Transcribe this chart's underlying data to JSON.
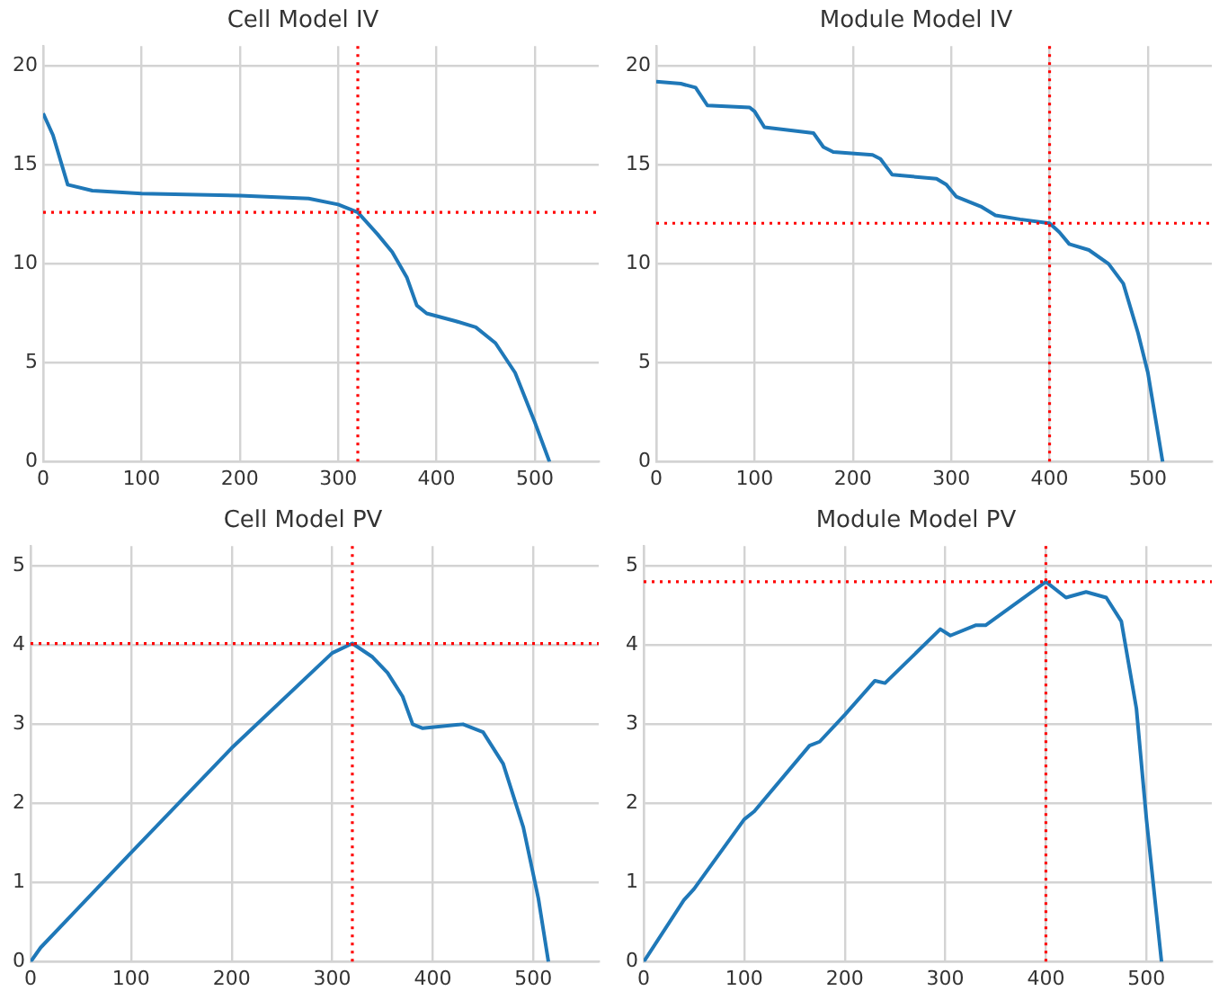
{
  "chart_data": [
    {
      "type": "line",
      "title": "Cell Model IV",
      "color": "#1f78b8",
      "grid": true,
      "line_style": "solid",
      "x": [
        0,
        10,
        25,
        50,
        100,
        200,
        270,
        300,
        320,
        340,
        355,
        370,
        380,
        390,
        420,
        440,
        460,
        480,
        500,
        515
      ],
      "values": [
        17.6,
        16.5,
        14,
        13.7,
        13.55,
        13.45,
        13.3,
        13.0,
        12.6,
        11.5,
        10.6,
        9.3,
        7.9,
        7.5,
        7.1,
        6.8,
        6.0,
        4.5,
        2.0,
        0
      ],
      "xlim": [
        0,
        565
      ],
      "ylim": [
        0,
        21
      ],
      "xticks": [
        0,
        100,
        200,
        300,
        400,
        500
      ],
      "yticks": [
        0,
        5,
        10,
        15,
        20
      ],
      "ref_lines": [
        {
          "axis": "x",
          "value": 320,
          "color": "#ff0000",
          "line_style": "dotted"
        },
        {
          "axis": "y",
          "value": 12.6,
          "color": "#ff0000",
          "line_style": "dotted"
        }
      ]
    },
    {
      "type": "line",
      "title": "Module Model IV",
      "color": "#1f78b8",
      "grid": true,
      "line_style": "solid",
      "x": [
        0,
        25,
        40,
        52,
        95,
        100,
        110,
        160,
        170,
        180,
        220,
        228,
        240,
        285,
        295,
        305,
        330,
        345,
        370,
        400,
        410,
        420,
        440,
        460,
        475,
        490,
        500,
        515
      ],
      "values": [
        19.2,
        19.1,
        18.9,
        18.0,
        17.9,
        17.7,
        16.9,
        16.6,
        15.9,
        15.65,
        15.5,
        15.3,
        14.5,
        14.3,
        14.0,
        13.4,
        12.9,
        12.45,
        12.25,
        12.05,
        11.6,
        11.0,
        10.7,
        10.0,
        9.0,
        6.5,
        4.5,
        0
      ],
      "xlim": [
        0,
        565
      ],
      "ylim": [
        0,
        21
      ],
      "xticks": [
        0,
        100,
        200,
        300,
        400,
        500
      ],
      "yticks": [
        0,
        5,
        10,
        15,
        20
      ],
      "ref_lines": [
        {
          "axis": "x",
          "value": 400,
          "color": "#ff0000",
          "line_style": "dotted"
        },
        {
          "axis": "y",
          "value": 12.05,
          "color": "#ff0000",
          "line_style": "dotted"
        }
      ]
    },
    {
      "type": "line",
      "title": "Cell Model PV",
      "color": "#1f78b8",
      "grid": true,
      "line_style": "solid",
      "x": [
        0,
        10,
        100,
        200,
        300,
        320,
        340,
        355,
        370,
        380,
        390,
        430,
        450,
        470,
        490,
        505,
        515
      ],
      "values": [
        0,
        0.18,
        1.38,
        2.7,
        3.9,
        4.02,
        3.85,
        3.65,
        3.35,
        3.0,
        2.95,
        3.0,
        2.9,
        2.5,
        1.7,
        0.8,
        0
      ],
      "xlim": [
        0,
        565
      ],
      "ylim": [
        0,
        5.25
      ],
      "xticks": [
        0,
        100,
        200,
        300,
        400,
        500
      ],
      "yticks": [
        0,
        1,
        2,
        3,
        4,
        5
      ],
      "ref_lines": [
        {
          "axis": "x",
          "value": 320,
          "color": "#ff0000",
          "line_style": "dotted"
        },
        {
          "axis": "y",
          "value": 4.02,
          "color": "#ff0000",
          "line_style": "dotted"
        }
      ]
    },
    {
      "type": "line",
      "title": "Module Model PV",
      "color": "#1f78b8",
      "grid": true,
      "line_style": "solid",
      "x": [
        0,
        40,
        50,
        100,
        110,
        165,
        175,
        200,
        230,
        240,
        295,
        305,
        330,
        340,
        400,
        420,
        440,
        460,
        475,
        490,
        500,
        515
      ],
      "values": [
        0,
        0.78,
        0.92,
        1.8,
        1.9,
        2.73,
        2.78,
        3.12,
        3.55,
        3.52,
        4.2,
        4.12,
        4.25,
        4.25,
        4.8,
        4.6,
        4.67,
        4.6,
        4.3,
        3.2,
        1.8,
        0
      ],
      "xlim": [
        0,
        565
      ],
      "ylim": [
        0,
        5.25
      ],
      "xticks": [
        0,
        100,
        200,
        300,
        400,
        500
      ],
      "yticks": [
        0,
        1,
        2,
        3,
        4,
        5
      ],
      "ref_lines": [
        {
          "axis": "x",
          "value": 400,
          "color": "#ff0000",
          "line_style": "dotted"
        },
        {
          "axis": "y",
          "value": 4.8,
          "color": "#ff0000",
          "line_style": "dotted"
        }
      ]
    }
  ]
}
